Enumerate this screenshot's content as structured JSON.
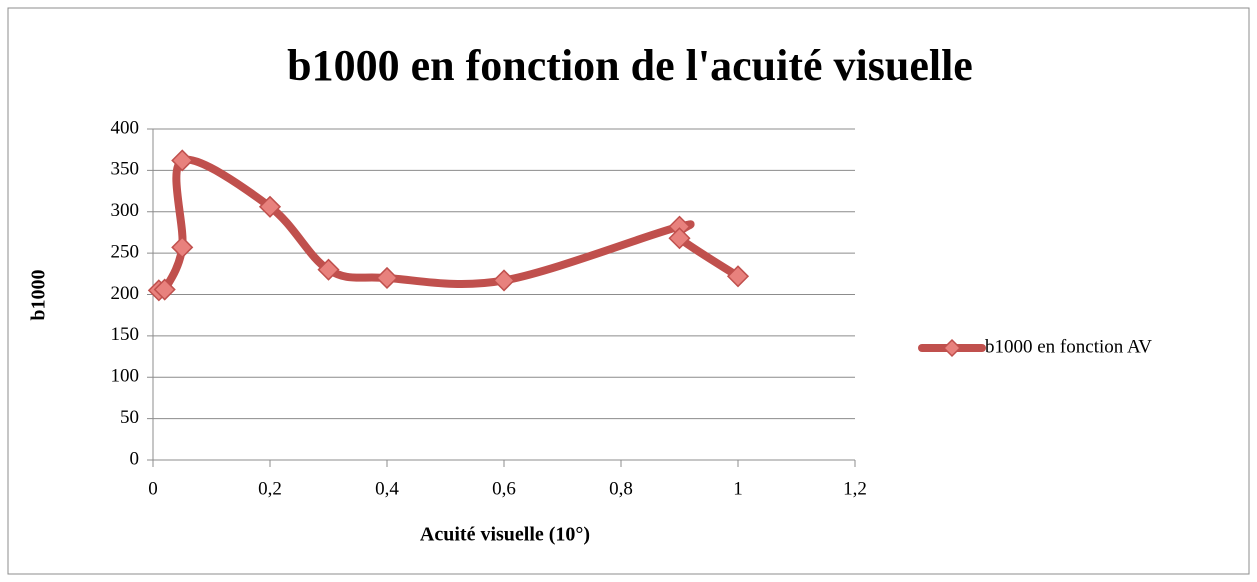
{
  "chart_data": {
    "type": "scatter_smooth",
    "title": "b1000 en fonction de l'acuité visuelle",
    "x_label": "Acuité visuelle (10°)",
    "y_label": "b1000",
    "series": [
      {
        "name": "b1000 en fonction AV",
        "color": "#c0504d",
        "marker_color": "#e8817d",
        "x": [
          0.01,
          0.02,
          0.05,
          0.05,
          0.2,
          0.3,
          0.4,
          0.6,
          0.9,
          0.9,
          1
        ],
        "values": [
          205,
          206,
          257,
          362,
          306,
          230,
          220,
          217,
          282,
          268,
          222
        ]
      }
    ],
    "xlim": [
      0,
      1.2
    ],
    "xticks": [
      0,
      {
        "value": 0.2,
        "label": "0,2"
      },
      {
        "value": 0.4,
        "label": "0,4"
      },
      {
        "value": 0.6,
        "label": "0,6"
      },
      {
        "value": 0.8,
        "label": "0,8"
      },
      1,
      {
        "value": 1.2,
        "label": "1,2"
      }
    ],
    "ylim": [
      0,
      400
    ],
    "yticks": [
      0,
      50,
      100,
      150,
      200,
      250,
      300,
      350,
      400
    ],
    "grid": true,
    "legend": "right"
  }
}
